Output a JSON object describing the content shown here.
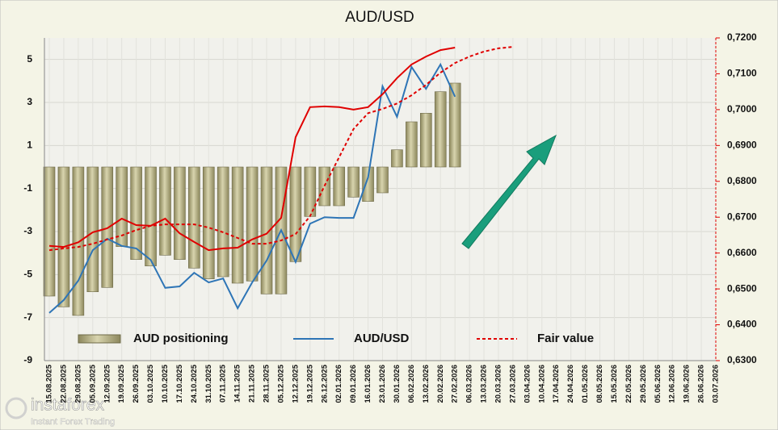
{
  "chart_data": {
    "type": "combo",
    "title": "AUD/USD",
    "categories": [
      "15.08.2025",
      "22.08.2025",
      "29.08.2025",
      "05.09.2025",
      "12.09.2025",
      "19.09.2025",
      "26.09.2025",
      "03.10.2025",
      "10.10.2025",
      "17.10.2025",
      "24.10.2025",
      "31.10.2025",
      "07.11.2025",
      "14.11.2025",
      "21.11.2025",
      "28.11.2025",
      "05.12.2025",
      "12.12.2025",
      "19.12.2025",
      "26.12.2025",
      "02.01.2026",
      "09.01.2026",
      "16.01.2026",
      "23.01.2026",
      "30.01.2026",
      "06.02.2026",
      "13.02.2026",
      "20.02.2026",
      "27.02.2026",
      "06.03.2026",
      "13.03.2026",
      "20.03.2026",
      "27.03.2026",
      "03.04.2026",
      "10.04.2026",
      "17.04.2026",
      "24.04.2026",
      "01.05.2026",
      "08.05.2026",
      "15.05.2026",
      "22.05.2026",
      "29.05.2026",
      "05.06.2026",
      "12.06.2026",
      "19.06.2026",
      "26.06.2026",
      "03.07.2026"
    ],
    "series": [
      {
        "name": "AUD positioning",
        "type": "bar",
        "color": "#b9b48a",
        "axis": "y",
        "values": [
          -6.0,
          -6.5,
          -6.9,
          -5.8,
          -5.6,
          -3.7,
          -4.3,
          -4.6,
          -4.1,
          -4.3,
          -4.7,
          -5.2,
          -5.1,
          -5.4,
          -5.3,
          -5.9,
          -5.9,
          -4.4,
          -2.3,
          -1.8,
          -1.8,
          -1.4,
          -1.6,
          -1.2,
          0.8,
          2.1,
          2.5,
          3.5,
          3.9,
          null,
          null,
          null,
          null,
          null,
          null,
          null,
          null,
          null,
          null,
          null,
          null,
          null,
          null,
          null,
          null,
          null,
          null
        ]
      },
      {
        "name": "AUD/USD",
        "type": "line",
        "color": "#2e75b6",
        "axis": "y2",
        "values": [
          0.6433,
          0.6469,
          0.6523,
          0.6608,
          0.664,
          0.662,
          0.6613,
          0.6581,
          0.6503,
          0.6507,
          0.6545,
          0.6518,
          0.6529,
          0.6446,
          0.6518,
          0.6579,
          0.6664,
          0.6575,
          0.6682,
          0.67,
          0.6698,
          0.6698,
          0.6811,
          0.7065,
          0.698,
          0.7119,
          0.7058,
          0.7126,
          0.7036,
          null,
          null,
          null,
          null,
          null,
          null,
          null,
          null,
          null,
          null,
          null,
          null,
          null,
          null,
          null,
          null,
          null,
          null
        ]
      },
      {
        "type": "line",
        "color": "#e00000",
        "axis": "y2",
        "values": [
          0.662,
          0.6617,
          0.663,
          0.6658,
          0.6669,
          0.6696,
          0.6678,
          0.6676,
          0.6696,
          0.6655,
          0.6631,
          0.6608,
          0.6613,
          0.6615,
          0.6638,
          0.6654,
          0.6698,
          0.6923,
          0.7007,
          0.7009,
          0.7007,
          0.7,
          0.7007,
          0.7043,
          0.7088,
          0.7126,
          0.7148,
          0.7166,
          0.7173,
          null,
          null,
          null,
          null,
          null,
          null,
          null,
          null,
          null,
          null,
          null,
          null,
          null,
          null,
          null,
          null,
          null,
          null
        ]
      },
      {
        "name": "Fair value",
        "type": "dashed-line",
        "color": "#e00000",
        "axis": "y2",
        "values": [
          0.6608,
          0.6613,
          0.6617,
          0.6626,
          0.6638,
          0.6649,
          0.6664,
          0.6676,
          0.668,
          0.668,
          0.668,
          0.6671,
          0.6658,
          0.6642,
          0.6626,
          0.6626,
          0.6635,
          0.6653,
          0.6703,
          0.6788,
          0.6867,
          0.6946,
          0.699,
          0.7002,
          0.7017,
          0.704,
          0.7069,
          0.7103,
          0.713,
          0.7148,
          0.7162,
          0.7171,
          0.7175,
          null,
          null,
          null,
          null,
          null,
          null,
          null,
          null,
          null,
          null,
          null,
          null,
          null,
          null
        ]
      }
    ],
    "ylim": [
      -9,
      6
    ],
    "yticks": [
      -9,
      -7,
      -5,
      -3,
      -1,
      1,
      3,
      5
    ],
    "y2lim": [
      0.63,
      0.72
    ],
    "y2ticks": [
      {
        "value": 0.63,
        "label": "0,6300"
      },
      {
        "value": 0.64,
        "label": "0,6400"
      },
      {
        "value": 0.65,
        "label": "0,6500"
      },
      {
        "value": 0.66,
        "label": "0,6600"
      },
      {
        "value": 0.67,
        "label": "0,6700"
      },
      {
        "value": 0.68,
        "label": "0,6800"
      },
      {
        "value": 0.69,
        "label": "0,6900"
      },
      {
        "value": 0.7,
        "label": "0,7000"
      },
      {
        "value": 0.71,
        "label": "0,7100"
      },
      {
        "value": 0.72,
        "label": "0,7200"
      }
    ],
    "grid": true
  },
  "watermark": {
    "brand": "instaforex",
    "tagline": "Instant Forex Trading"
  }
}
